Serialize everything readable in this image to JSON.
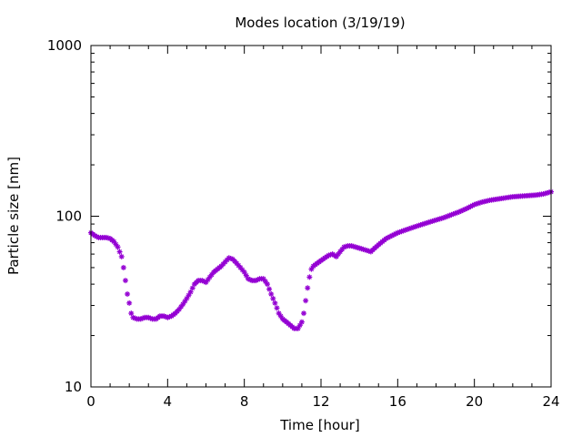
{
  "chart_data": {
    "type": "scatter",
    "title": "Modes location (3/19/19)",
    "xlabel": "Time [hour]",
    "ylabel": "Particle size [nm]",
    "xlim": [
      0,
      24
    ],
    "ylim": [
      10,
      1000
    ],
    "yscale": "log",
    "xticks": [
      0,
      4,
      8,
      12,
      16,
      20,
      24
    ],
    "xtick_labels": [
      "0",
      "4",
      "8",
      "12",
      "16",
      "20",
      "24"
    ],
    "yticks": [
      10,
      100,
      1000
    ],
    "ytick_labels": [
      "10",
      "100",
      "1000"
    ],
    "grid": false,
    "legend": "none",
    "marker": "asterisk",
    "color": "#9400d3",
    "series": [
      {
        "x": [
          0.0,
          0.2,
          0.4,
          0.6,
          0.8,
          1.0,
          1.2,
          1.4,
          1.6,
          1.7,
          1.8,
          1.9,
          2.0,
          2.1,
          2.2,
          2.4,
          2.6,
          2.8,
          3.0,
          3.2,
          3.4,
          3.6,
          3.8,
          4.0,
          4.2,
          4.4,
          4.6,
          4.8,
          5.0,
          5.2,
          5.4,
          5.6,
          5.8,
          6.0,
          6.2,
          6.4,
          6.6,
          6.8,
          7.0,
          7.2,
          7.4,
          7.6,
          7.8,
          8.0,
          8.2,
          8.4,
          8.6,
          8.8,
          9.0,
          9.2,
          9.4,
          9.6,
          9.7,
          9.8,
          10.0,
          10.2,
          10.4,
          10.6,
          10.8,
          11.0,
          11.1,
          11.2,
          11.3,
          11.4,
          11.5,
          11.6,
          11.8,
          12.0,
          12.2,
          12.4,
          12.6,
          12.8,
          13.0,
          13.2,
          13.4,
          13.6,
          13.8,
          14.0,
          14.2,
          14.4,
          14.6,
          14.8,
          15.0,
          15.2,
          15.4,
          15.6,
          15.8,
          16.0,
          16.4,
          16.8,
          17.2,
          17.6,
          18.0,
          18.4,
          18.8,
          19.2,
          19.6,
          20.0,
          20.4,
          20.8,
          21.2,
          21.6,
          22.0,
          22.4,
          22.8,
          23.2,
          23.6,
          24.0
        ],
        "y": [
          80,
          77,
          75,
          75,
          75,
          74,
          71,
          66,
          58,
          50,
          42,
          35,
          31,
          27,
          25.5,
          25,
          25,
          25.5,
          25.5,
          25,
          25,
          26,
          26,
          25.5,
          26,
          27,
          28.5,
          30.5,
          33,
          36,
          40,
          42,
          42,
          41,
          44,
          47,
          49,
          51,
          54,
          57,
          56,
          53,
          50,
          47,
          43,
          42,
          42,
          43,
          43,
          40,
          35,
          31,
          29,
          27,
          25,
          24,
          23,
          22,
          22,
          24,
          27,
          32,
          38,
          44,
          49,
          51,
          53,
          55,
          57,
          59,
          60,
          58,
          62,
          66,
          67,
          67,
          66,
          65,
          64,
          63,
          62,
          65,
          68,
          71,
          74,
          76,
          78,
          80,
          83,
          86,
          89,
          92,
          95,
          98,
          102,
          106,
          111,
          117,
          121,
          124,
          126,
          128,
          130,
          131,
          132,
          133,
          135,
          139
        ]
      }
    ]
  }
}
